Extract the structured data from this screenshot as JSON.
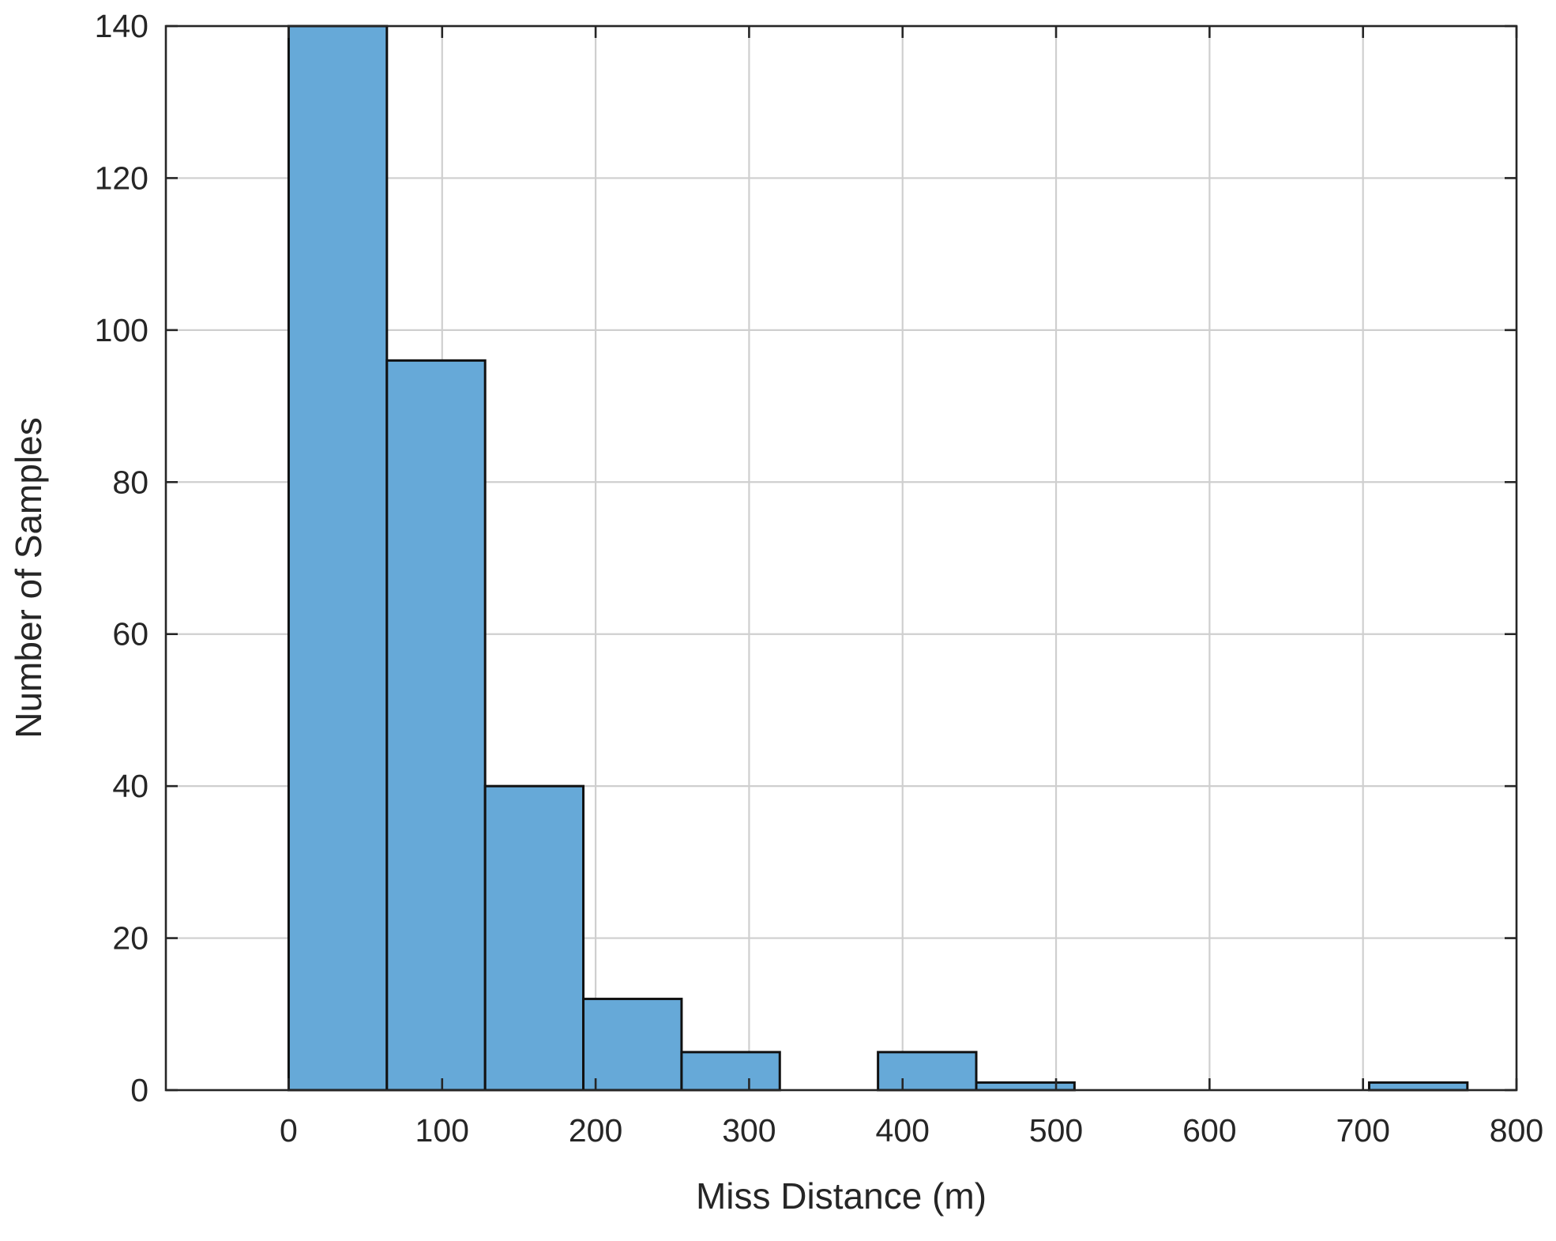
{
  "chart_data": {
    "type": "bar",
    "subtype": "histogram",
    "title": "",
    "xlabel": "Miss Distance (m)",
    "ylabel": "Number of Samples",
    "xlim": [
      -80,
      800
    ],
    "ylim": [
      0,
      140
    ],
    "xticks": [
      0,
      100,
      200,
      300,
      400,
      500,
      600,
      700,
      800
    ],
    "yticks": [
      0,
      20,
      40,
      60,
      80,
      100,
      120,
      140
    ],
    "grid": true,
    "bin_width": 64,
    "bins": [
      {
        "start": 0,
        "end": 64,
        "count": 140
      },
      {
        "start": 64,
        "end": 128,
        "count": 96
      },
      {
        "start": 128,
        "end": 192,
        "count": 40
      },
      {
        "start": 192,
        "end": 256,
        "count": 12
      },
      {
        "start": 256,
        "end": 320,
        "count": 5
      },
      {
        "start": 320,
        "end": 384,
        "count": 0
      },
      {
        "start": 384,
        "end": 448,
        "count": 5
      },
      {
        "start": 448,
        "end": 512,
        "count": 1
      },
      {
        "start": 512,
        "end": 576,
        "count": 0
      },
      {
        "start": 576,
        "end": 640,
        "count": 0
      },
      {
        "start": 640,
        "end": 704,
        "count": 0
      },
      {
        "start": 704,
        "end": 768,
        "count": 1
      }
    ],
    "colors": {
      "bar_fill": "#66a9d8",
      "bar_edge": "#111111",
      "grid": "#cfcfcf",
      "axis": "#262626"
    }
  }
}
